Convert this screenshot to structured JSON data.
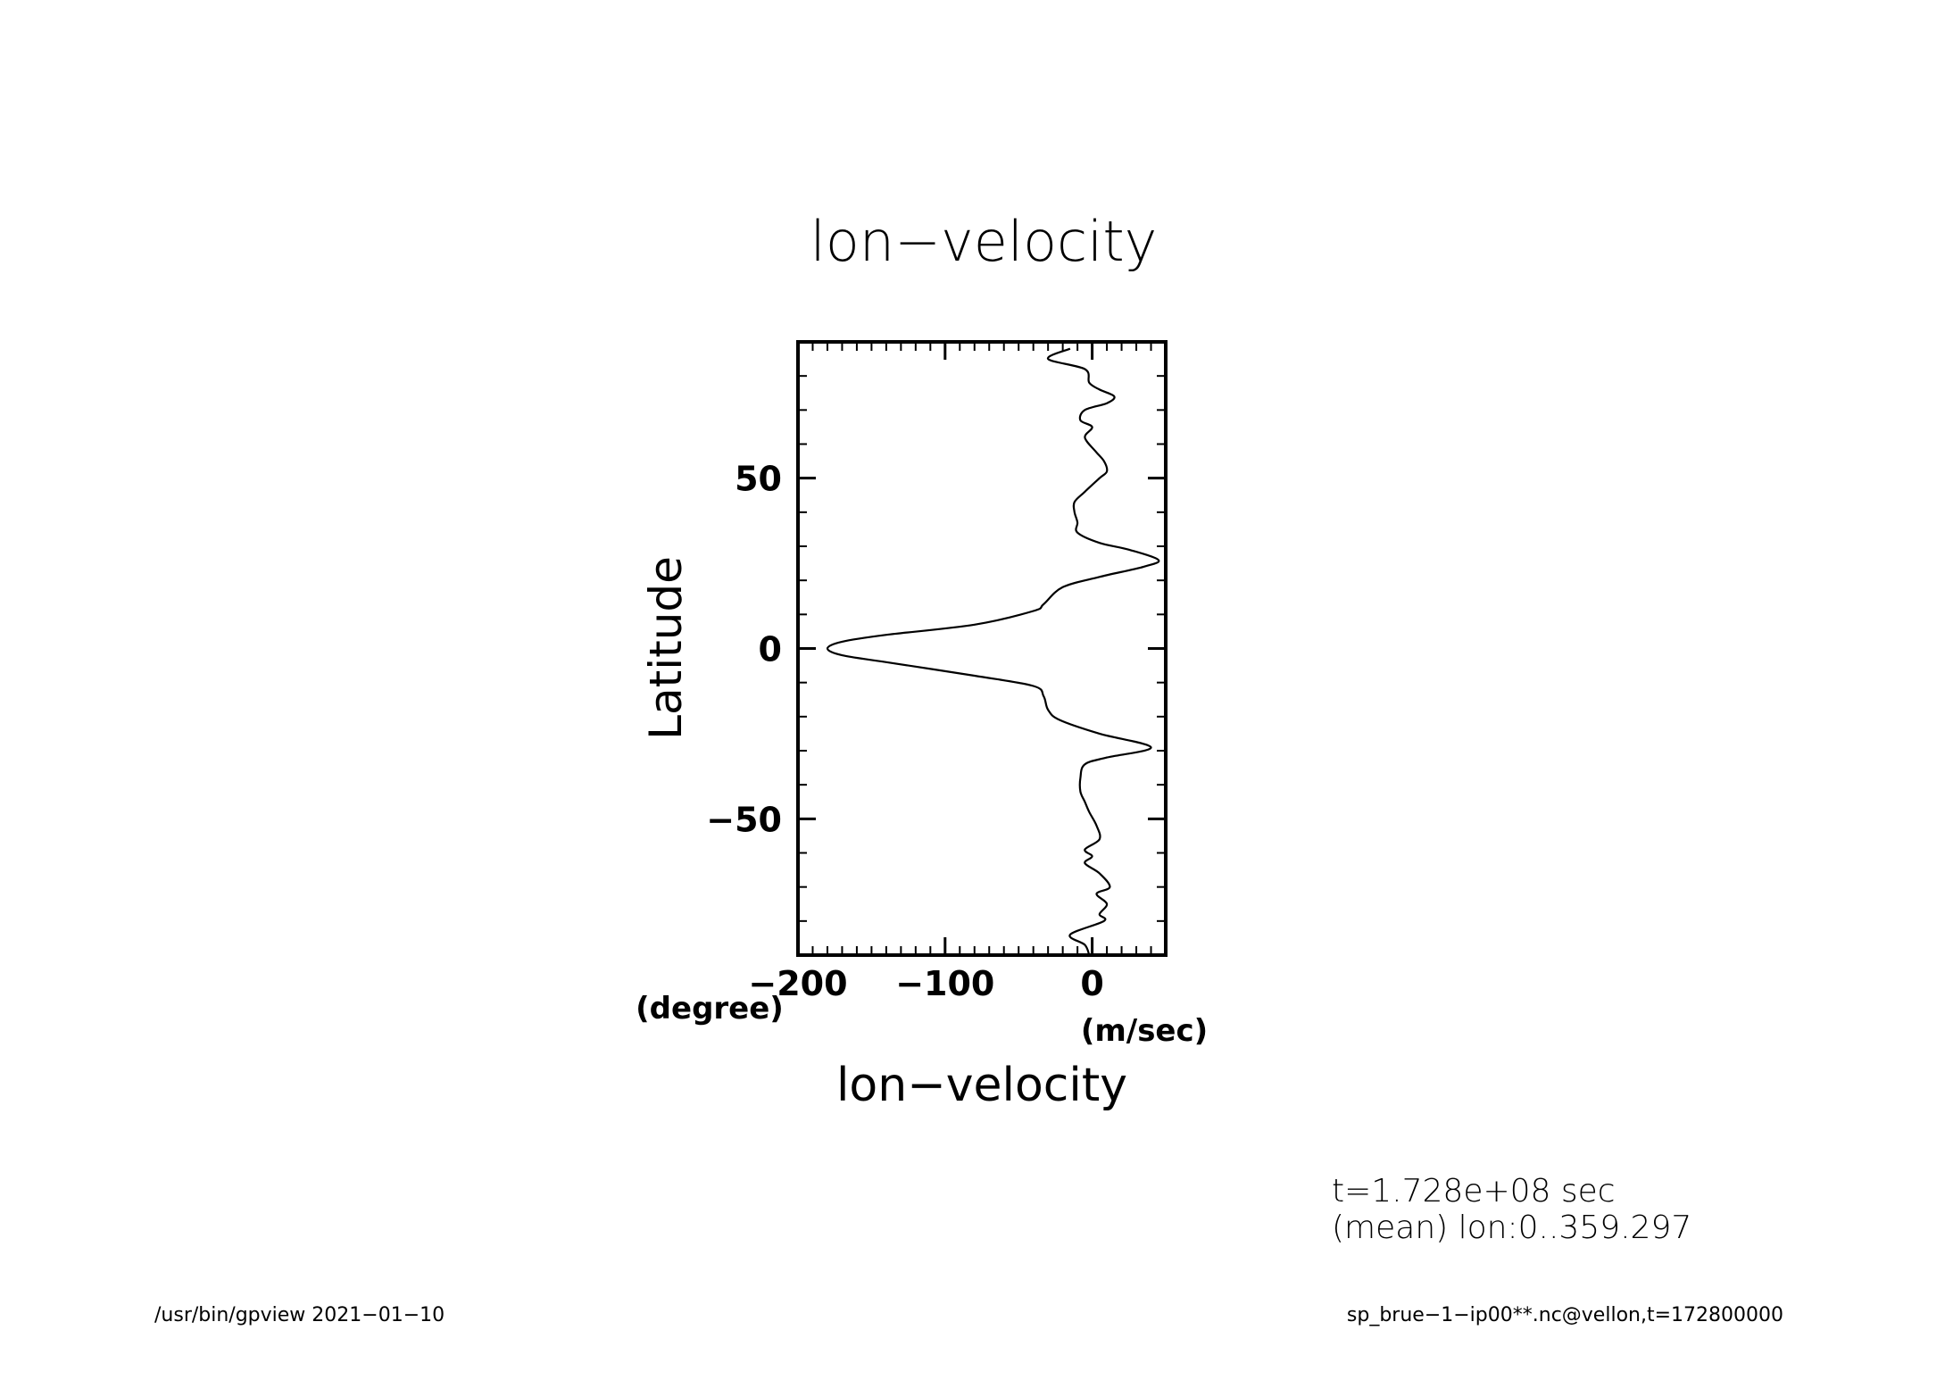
{
  "chart_data": {
    "type": "line",
    "title": "lon−velocity",
    "xlabel": "lon−velocity",
    "ylabel": "Latitude",
    "x_units": "(m/sec)",
    "y_units": "(degree)",
    "xlim": [
      -200,
      50
    ],
    "ylim": [
      -90,
      90
    ],
    "x_ticks": [
      {
        "value": -200,
        "label": "−200"
      },
      {
        "value": -100,
        "label": "−100"
      },
      {
        "value": 0,
        "label": "0"
      }
    ],
    "y_ticks": [
      {
        "value": 50,
        "label": "50"
      },
      {
        "value": 0,
        "label": "0"
      },
      {
        "value": -50,
        "label": "−50"
      }
    ],
    "x_minor_step": 10,
    "y_minor_step": 10,
    "grid": false,
    "series": [
      {
        "points": [
          [
            -15,
            88
          ],
          [
            -30,
            85
          ],
          [
            -5,
            82
          ],
          [
            -2,
            78
          ],
          [
            5,
            76
          ],
          [
            15,
            74
          ],
          [
            10,
            72
          ],
          [
            -5,
            70
          ],
          [
            -8,
            67
          ],
          [
            0,
            65
          ],
          [
            -5,
            62
          ],
          [
            2,
            58
          ],
          [
            8,
            55
          ],
          [
            10,
            52
          ],
          [
            5,
            50
          ],
          [
            -5,
            46
          ],
          [
            -12,
            43
          ],
          [
            -12,
            40
          ],
          [
            -10,
            37
          ],
          [
            -10,
            34
          ],
          [
            5,
            31
          ],
          [
            25,
            29
          ],
          [
            45,
            26
          ],
          [
            35,
            24
          ],
          [
            5,
            21
          ],
          [
            -20,
            18
          ],
          [
            -33,
            13
          ],
          [
            -40,
            11
          ],
          [
            -80,
            7
          ],
          [
            -140,
            4
          ],
          [
            -170,
            2
          ],
          [
            -180,
            0
          ],
          [
            -170,
            -2
          ],
          [
            -140,
            -4
          ],
          [
            -80,
            -8
          ],
          [
            -40,
            -11
          ],
          [
            -33,
            -14
          ],
          [
            -30,
            -18
          ],
          [
            -22,
            -21
          ],
          [
            5,
            -25
          ],
          [
            40,
            -29
          ],
          [
            10,
            -32
          ],
          [
            -5,
            -34
          ],
          [
            -8,
            -38
          ],
          [
            -8,
            -42
          ],
          [
            -5,
            -45
          ],
          [
            -2,
            -48
          ],
          [
            3,
            -52
          ],
          [
            5,
            -56
          ],
          [
            -5,
            -59
          ],
          [
            0,
            -61
          ],
          [
            -5,
            -63
          ],
          [
            5,
            -66
          ],
          [
            12,
            -70
          ],
          [
            3,
            -72
          ],
          [
            10,
            -75
          ],
          [
            5,
            -78
          ],
          [
            8,
            -80
          ],
          [
            -15,
            -84
          ],
          [
            -5,
            -87
          ],
          [
            -2,
            -90
          ]
        ]
      }
    ]
  },
  "annotations": {
    "time": "t=1.728e+08 sec",
    "mean": "(mean) lon:0..359.297"
  },
  "footer": {
    "left": "/usr/bin/gpview   2021−01−10",
    "right": "sp_brue−1−ip00**.nc@vellon,t=172800000"
  }
}
